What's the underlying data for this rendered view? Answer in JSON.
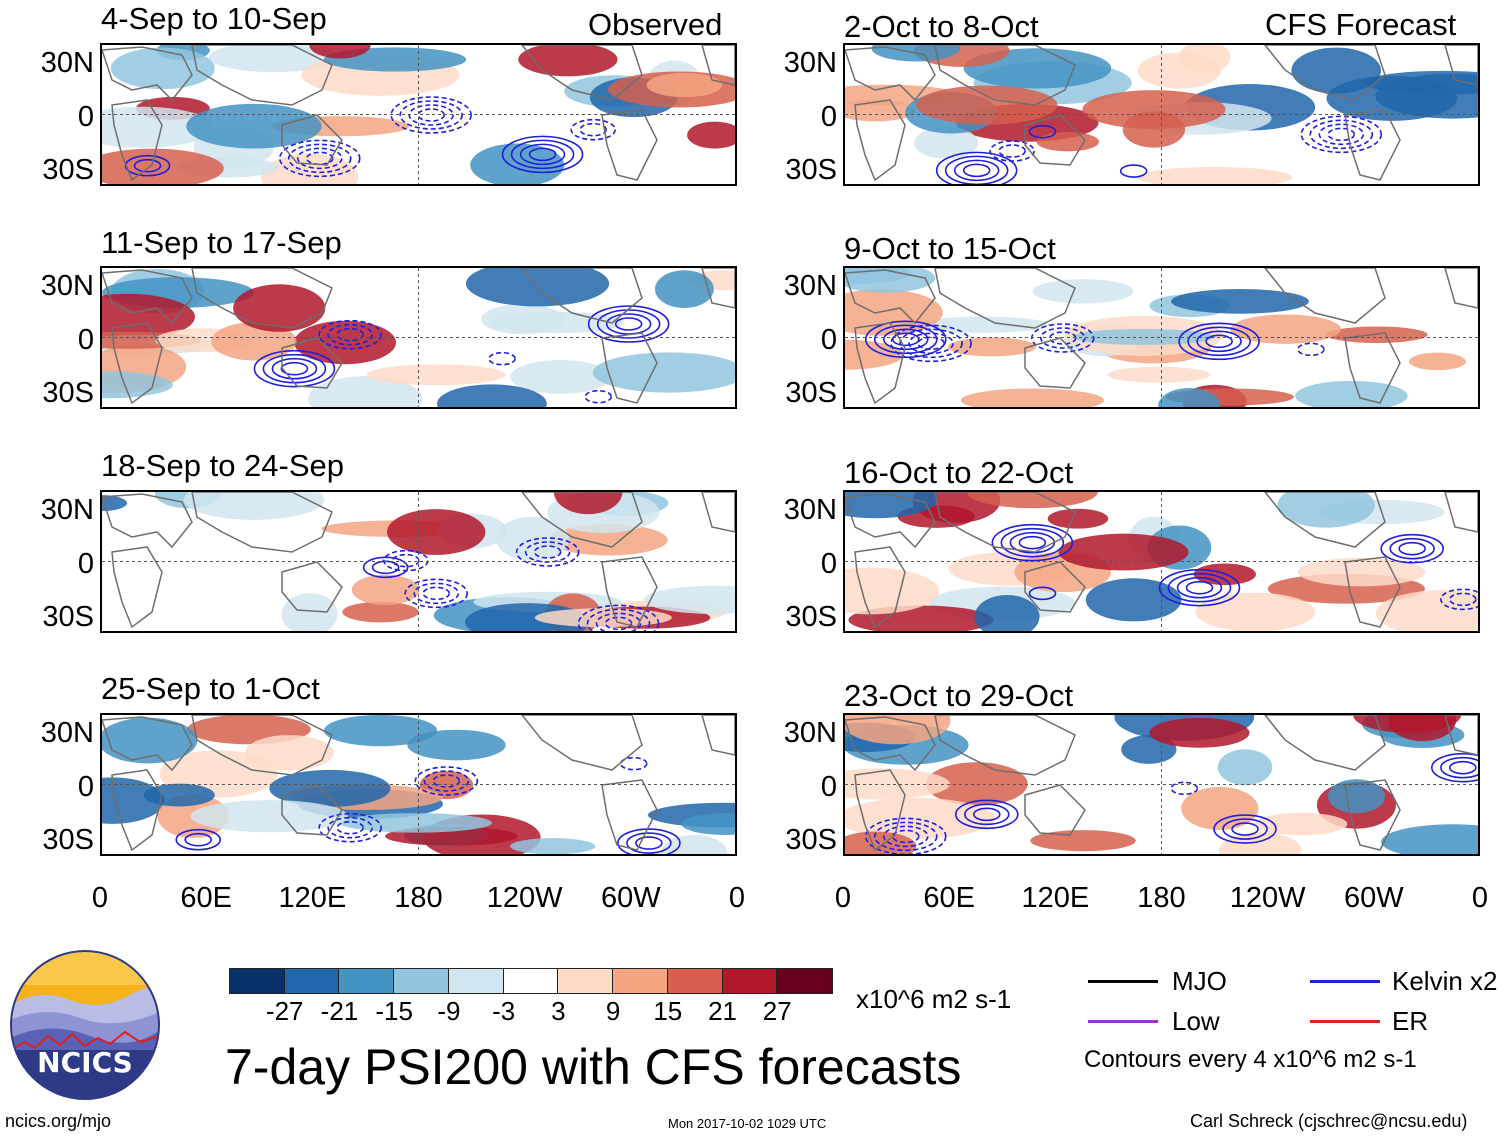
{
  "headers": {
    "observed": "Observed",
    "forecast": "CFS Forecast"
  },
  "observed_panels": [
    {
      "title": "4-Sep to 10-Sep"
    },
    {
      "title": "11-Sep to 17-Sep"
    },
    {
      "title": "18-Sep to 24-Sep"
    },
    {
      "title": "25-Sep to 1-Oct"
    }
  ],
  "forecast_panels": [
    {
      "title": "2-Oct to 8-Oct"
    },
    {
      "title": "9-Oct to 15-Oct"
    },
    {
      "title": "16-Oct to 22-Oct"
    },
    {
      "title": "23-Oct to 29-Oct"
    }
  ],
  "lat_labels": [
    "30N",
    "0",
    "30S"
  ],
  "lon_labels": [
    "0",
    "60E",
    "120E",
    "180",
    "120W",
    "60W",
    "0"
  ],
  "colorbar": {
    "colors": [
      "#08306b",
      "#2166ac",
      "#4393c3",
      "#92c5de",
      "#d1e5f0",
      "#ffffff",
      "#fddbc7",
      "#f4a582",
      "#d6604d",
      "#b2182b",
      "#67001f"
    ],
    "ticks": [
      "-27",
      "-21",
      "-15",
      "-9",
      "-3",
      "3",
      "9",
      "15",
      "21",
      "27"
    ],
    "units": "x10^6 m2 s-1"
  },
  "legend": [
    {
      "label": "MJO",
      "color": "#000000"
    },
    {
      "label": "Kelvin x2",
      "color": "#1f1fdc"
    },
    {
      "label": "Low",
      "color": "#9b30d9"
    },
    {
      "label": "ER",
      "color": "#e0201c"
    }
  ],
  "contour_note": "Contours every 4 x10^6 m2 s-1",
  "title": "7-day PSI200 with CFS forecasts",
  "logo_text": "NCICS",
  "footer": {
    "url": "ncics.org/mjo",
    "timestamp": "Mon 2017-10-02 1029 UTC",
    "author": "Carl Schreck (cjschrec@ncsu.edu)"
  }
}
